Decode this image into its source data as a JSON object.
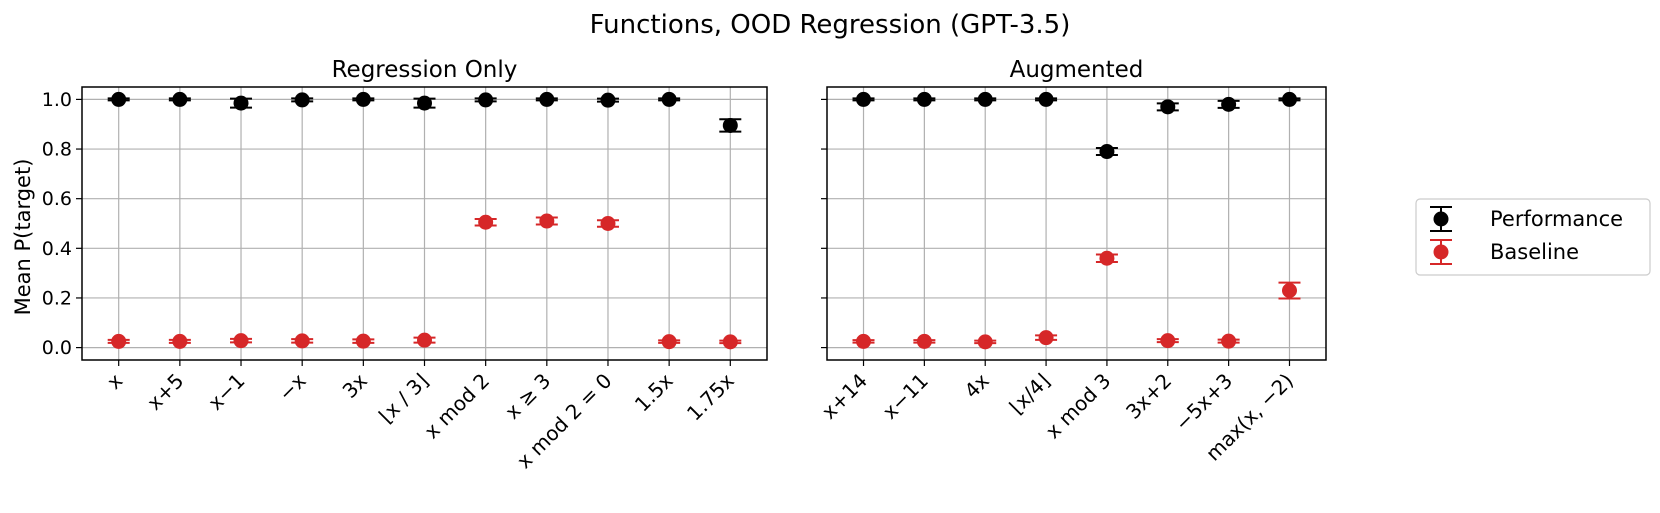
{
  "figure": {
    "title": "Functions, OOD Regression (GPT-3.5)",
    "ylabel": "Mean P(target)"
  },
  "legend": [
    {
      "label": "Performance",
      "color": "#000000"
    },
    {
      "label": "Baseline",
      "color": "#d62728"
    }
  ],
  "chart_data": [
    {
      "type": "scatter",
      "title": "Regression Only",
      "ylabel": "Mean P(target)",
      "ylim": [
        -0.05,
        1.05
      ],
      "yticks": [
        "0.0",
        "0.2",
        "0.4",
        "0.6",
        "0.8",
        "1.0"
      ],
      "grid": true,
      "categories": [
        "x",
        "x+5",
        "x−1",
        "−x",
        "3x",
        "⌊x / 3⌋",
        "x mod 2",
        "x ≥ 3",
        "x  mod 2 = 0",
        "1.5x",
        "1.75x"
      ],
      "series": [
        {
          "name": "Performance",
          "color": "#000000",
          "values": [
            1.0,
            1.0,
            0.985,
            0.998,
            1.0,
            0.985,
            0.998,
            1.0,
            0.997,
            1.0,
            0.895
          ],
          "errors": [
            0.004,
            0.004,
            0.018,
            0.006,
            0.004,
            0.018,
            0.006,
            0.004,
            0.006,
            0.004,
            0.025
          ]
        },
        {
          "name": "Baseline",
          "color": "#d62728",
          "values": [
            0.025,
            0.025,
            0.028,
            0.027,
            0.026,
            0.03,
            0.505,
            0.51,
            0.5,
            0.024,
            0.023
          ],
          "errors": [
            0.006,
            0.006,
            0.007,
            0.007,
            0.007,
            0.01,
            0.013,
            0.014,
            0.013,
            0.005,
            0.005
          ]
        }
      ]
    },
    {
      "type": "scatter",
      "title": "Augmented",
      "ylim": [
        -0.05,
        1.05
      ],
      "grid": true,
      "categories": [
        "x+14",
        "x−11",
        "4x",
        "⌊x/4⌋",
        "x mod 3",
        "3x+2",
        "−5x+3",
        "max(x, −2)"
      ],
      "series": [
        {
          "name": "Performance",
          "color": "#000000",
          "values": [
            1.0,
            1.0,
            1.0,
            1.0,
            0.79,
            0.97,
            0.98,
            1.0
          ],
          "errors": [
            0.004,
            0.004,
            0.004,
            0.004,
            0.014,
            0.014,
            0.014,
            0.004
          ]
        },
        {
          "name": "Baseline",
          "color": "#d62728",
          "values": [
            0.025,
            0.025,
            0.023,
            0.04,
            0.36,
            0.028,
            0.026,
            0.23
          ],
          "errors": [
            0.005,
            0.005,
            0.005,
            0.009,
            0.015,
            0.006,
            0.006,
            0.032
          ]
        }
      ]
    }
  ]
}
